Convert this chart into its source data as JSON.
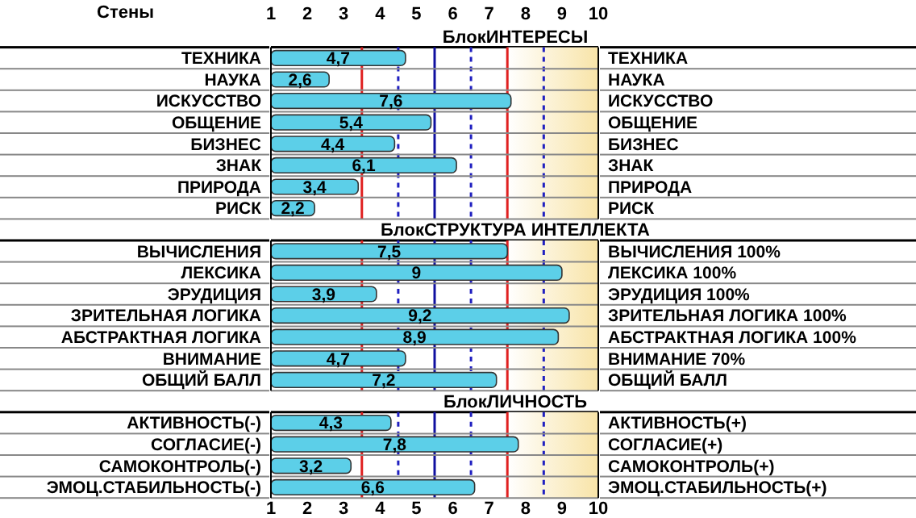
{
  "chart_data": [
    {
      "type": "bar",
      "orientation": "horizontal",
      "title": "БлокИНТЕРЕСЫ",
      "x2label": "Стены",
      "categories": [
        "ТЕХНИКА",
        "НАУКА",
        "ИСКУССТВО",
        "ОБЩЕНИЕ",
        "БИЗНЕС",
        "ЗНАК",
        "ПРИРОДА",
        "РИСК"
      ],
      "values": [
        4.7,
        2.6,
        7.6,
        5.4,
        4.4,
        6.1,
        3.4,
        2.2
      ],
      "value_labels": [
        "4,7",
        "2,6",
        "7,6",
        "5,4",
        "4,4",
        "6,1",
        "3,4",
        "2,2"
      ],
      "annotations": [
        "ТЕХНИКА",
        "НАУКА",
        "ИСКУССТВО",
        "ОБЩЕНИЕ",
        "БИЗНЕС",
        "ЗНАК",
        "ПРИРОДА",
        "РИСК"
      ],
      "color": "#5ccfe8",
      "xlim": [
        1,
        10
      ],
      "x2lim": [
        1,
        10
      ],
      "x2ticks": [
        1,
        2,
        3,
        4,
        5,
        6,
        7,
        8,
        9,
        10
      ],
      "tick_labels": "y",
      "ref_lines": [
        {
          "axis": "x",
          "value": 3.5,
          "color": "#e02020",
          "line_style": "solid"
        },
        {
          "axis": "x",
          "value": 4.5,
          "color": "#2020c0",
          "line_style": "dashed"
        },
        {
          "axis": "x",
          "value": 5.5,
          "color": "#1010a0",
          "line_style": "solid"
        },
        {
          "axis": "x",
          "value": 6.5,
          "color": "#2020c0",
          "line_style": "dashed"
        },
        {
          "axis": "x",
          "value": 7.5,
          "color": "#e02020",
          "line_style": "solid"
        },
        {
          "axis": "x",
          "value": 8.5,
          "color": "#2020c0",
          "line_style": "dashed"
        }
      ],
      "bands": [
        {
          "axis": "x",
          "from": 7.5,
          "to": 10,
          "color": "#f8e4a8"
        }
      ]
    },
    {
      "type": "bar",
      "orientation": "horizontal",
      "title": "БлокСТРУКТУРА ИНТЕЛЛЕКТА",
      "categories": [
        "ВЫЧИСЛЕНИЯ",
        "ЛЕКСИКА",
        "ЭРУДИЦИЯ",
        "ЗРИТЕЛЬНАЯ ЛОГИКА",
        "АБСТРАКТНАЯ ЛОГИКА",
        "ВНИМАНИЕ",
        "ОБЩИЙ БАЛЛ"
      ],
      "values": [
        7.5,
        9,
        3.9,
        9.2,
        8.9,
        4.7,
        7.2
      ],
      "value_labels": [
        "7,5",
        "9",
        "3,9",
        "9,2",
        "8,9",
        "4,7",
        "7,2"
      ],
      "annotations": [
        "ВЫЧИСЛЕНИЯ  100%",
        "ЛЕКСИКА  100%",
        "ЭРУДИЦИЯ  100%",
        "ЗРИТЕЛЬНАЯ ЛОГИКА  100%",
        "АБСТРАКТНАЯ ЛОГИКА  100%",
        "ВНИМАНИЕ  70%",
        "ОБЩИЙ БАЛЛ"
      ],
      "color": "#5ccfe8",
      "xlim": [
        1,
        10
      ],
      "tick_labels": "y",
      "ref_lines": [
        {
          "axis": "x",
          "value": 3.5,
          "color": "#e02020",
          "line_style": "solid"
        },
        {
          "axis": "x",
          "value": 4.5,
          "color": "#2020c0",
          "line_style": "dashed"
        },
        {
          "axis": "x",
          "value": 5.5,
          "color": "#1010a0",
          "line_style": "solid"
        },
        {
          "axis": "x",
          "value": 6.5,
          "color": "#2020c0",
          "line_style": "dashed"
        },
        {
          "axis": "x",
          "value": 7.5,
          "color": "#e02020",
          "line_style": "solid"
        },
        {
          "axis": "x",
          "value": 8.5,
          "color": "#2020c0",
          "line_style": "dashed"
        }
      ],
      "bands": [
        {
          "axis": "x",
          "from": 7.5,
          "to": 10,
          "color": "#f8e4a8"
        }
      ]
    },
    {
      "type": "bar",
      "orientation": "horizontal",
      "title": "БлокЛИЧНОСТЬ",
      "categories": [
        "АКТИВНОСТЬ(-)",
        "СОГЛАСИЕ(-)",
        "САМОКОНТРОЛЬ(-)",
        "ЭМОЦ.СТАБИЛЬНОСТЬ(-)"
      ],
      "values": [
        4.3,
        7.8,
        3.2,
        6.6
      ],
      "value_labels": [
        "4,3",
        "7,8",
        "3,2",
        "6,6"
      ],
      "annotations": [
        "АКТИВНОСТЬ(+)",
        "СОГЛАСИЕ(+)",
        "САМОКОНТРОЛЬ(+)",
        "ЭМОЦ.СТАБИЛЬНОСТЬ(+)"
      ],
      "color": "#5ccfe8",
      "xlim": [
        1,
        10
      ],
      "xticks": [
        1,
        2,
        3,
        4,
        5,
        6,
        7,
        8,
        9,
        10
      ],
      "ref_lines": [
        {
          "axis": "x",
          "value": 3.5,
          "color": "#e02020",
          "line_style": "solid"
        },
        {
          "axis": "x",
          "value": 4.5,
          "color": "#2020c0",
          "line_style": "dashed"
        },
        {
          "axis": "x",
          "value": 5.5,
          "color": "#1010a0",
          "line_style": "solid"
        },
        {
          "axis": "x",
          "value": 6.5,
          "color": "#2020c0",
          "line_style": "dashed"
        },
        {
          "axis": "x",
          "value": 7.5,
          "color": "#e02020",
          "line_style": "solid"
        },
        {
          "axis": "x",
          "value": 8.5,
          "color": "#2020c0",
          "line_style": "dashed"
        }
      ],
      "bands": [
        {
          "axis": "x",
          "from": 7.5,
          "to": 10,
          "color": "#f8e4a8"
        }
      ]
    }
  ]
}
